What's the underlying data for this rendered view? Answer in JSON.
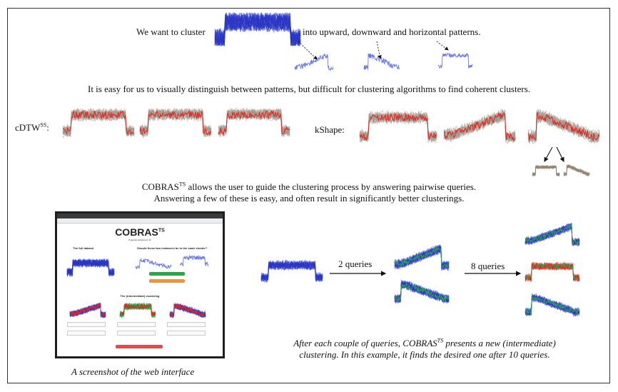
{
  "intro": {
    "prefix": "We want to cluster",
    "suffix": "into upward, downward and horizontal patterns."
  },
  "statement": "It is easy for us to visually distinguish between patterns, but difficult for clustering algorithms to find coherent clusters.",
  "methods": {
    "cdtw_label": "cDTW",
    "cdtw_sup": "SS",
    "cdtw_colon": ":",
    "kshape_label": "kShape:"
  },
  "cobras_intro": {
    "name": "COBRAS",
    "sup": "TS",
    "line1_rest": " allows the user to guide the clustering process by answering pairwise queries.",
    "line2": "Answering a few of these is easy, and often result in significantly better clusterings."
  },
  "web": {
    "title": "COBRAS",
    "title_sup": "TS",
    "queries_answered": "# queries answered: 10",
    "full_dataset": "The full dataset",
    "question": "Should these two instances be in the same cluster?",
    "intermediate": "The (intermediate) clustering",
    "cluster_pure": "This cluster is pure",
    "cluster_pure_complete": "This cluster is pure and complete",
    "caption": "A screenshot of the web interface"
  },
  "process": {
    "step1": "2 queries",
    "step2": "8 queries",
    "caption_line1_a": "After each couple of queries, COBRAS",
    "caption_sup": "TS",
    "caption_line1_b": " presents a new (intermediate)",
    "caption_line2": "clustering. In this example, it finds the desired one after 10 queries."
  },
  "colors": {
    "blue": "#2a36c4",
    "light_blue": "#6a78ee",
    "red": "#e8231b",
    "gray": "#a0968a",
    "brown": "#8d7c68",
    "green": "#27a64a",
    "orange": "#e9963c"
  }
}
